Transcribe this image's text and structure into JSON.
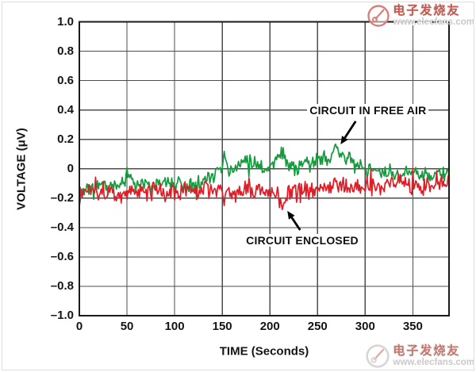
{
  "watermark": {
    "brand_cn": "电子发烧友",
    "brand_url": "www.elecfans.com",
    "logo_color": "#cf7068",
    "ring_color": "#d2d2d2"
  },
  "chart_data": {
    "type": "line",
    "title": "",
    "xlabel": "TIME (Seconds)",
    "ylabel": "VOLTAGE (μV)",
    "xlim": [
      0,
      388
    ],
    "ylim": [
      -1.0,
      1.0
    ],
    "grid": true,
    "grid_color": "#4d4d4d",
    "border_color": "#1a1a1a",
    "legend_position": "none",
    "xticks": [
      {
        "value": 0,
        "label": "0"
      },
      {
        "value": 50,
        "label": "50"
      },
      {
        "value": 100,
        "label": "100"
      },
      {
        "value": 150,
        "label": "150"
      },
      {
        "value": 200,
        "label": "200"
      },
      {
        "value": 250,
        "label": "250"
      },
      {
        "value": 300,
        "label": "300"
      },
      {
        "value": 350,
        "label": "350"
      }
    ],
    "yticks": [
      {
        "value": 1.0,
        "label": "1.0"
      },
      {
        "value": 0.8,
        "label": "0.8"
      },
      {
        "value": 0.6,
        "label": "0.6"
      },
      {
        "value": 0.4,
        "label": "0.4"
      },
      {
        "value": 0.2,
        "label": "0.2"
      },
      {
        "value": 0.0,
        "label": "0"
      },
      {
        "value": -0.2,
        "label": "–0.2"
      },
      {
        "value": -0.4,
        "label": "–0.4"
      },
      {
        "value": -0.6,
        "label": "–0.6"
      },
      {
        "value": -0.8,
        "label": "–0.8"
      },
      {
        "value": -1.0,
        "label": "–1.0"
      }
    ],
    "series": [
      {
        "name": "CIRCUIT IN FREE AIR",
        "color": "#149b3d",
        "noise_amplitude": 0.038,
        "noise_seed": 11,
        "anchors": [
          [
            0,
            -0.16
          ],
          [
            8,
            -0.12
          ],
          [
            15,
            -0.15
          ],
          [
            22,
            -0.1
          ],
          [
            30,
            -0.13
          ],
          [
            40,
            -0.12
          ],
          [
            50,
            -0.05
          ],
          [
            53,
            -0.03
          ],
          [
            58,
            -0.12
          ],
          [
            65,
            -0.1
          ],
          [
            75,
            -0.12
          ],
          [
            85,
            -0.09
          ],
          [
            95,
            -0.12
          ],
          [
            105,
            -0.09
          ],
          [
            112,
            -0.13
          ],
          [
            120,
            -0.09
          ],
          [
            128,
            -0.1
          ],
          [
            135,
            -0.06
          ],
          [
            142,
            -0.02
          ],
          [
            148,
            0.02
          ],
          [
            152,
            0.09
          ],
          [
            156,
            0.0
          ],
          [
            162,
            -0.01
          ],
          [
            168,
            0.03
          ],
          [
            173,
            0.08
          ],
          [
            178,
            0.04
          ],
          [
            184,
            0.06
          ],
          [
            190,
            0.01
          ],
          [
            196,
            0.0
          ],
          [
            203,
            0.03
          ],
          [
            209,
            0.1
          ],
          [
            213,
            0.12
          ],
          [
            218,
            0.03
          ],
          [
            224,
            0.01
          ],
          [
            230,
            -0.01
          ],
          [
            237,
            0.04
          ],
          [
            244,
            0.03
          ],
          [
            251,
            0.06
          ],
          [
            258,
            0.07
          ],
          [
            264,
            0.09
          ],
          [
            270,
            0.14
          ],
          [
            274,
            0.12
          ],
          [
            280,
            0.08
          ],
          [
            285,
            0.05
          ],
          [
            291,
            0.02
          ],
          [
            297,
            0.0
          ],
          [
            303,
            -0.02
          ],
          [
            310,
            -0.01
          ],
          [
            318,
            -0.04
          ],
          [
            326,
            -0.02
          ],
          [
            334,
            -0.05
          ],
          [
            342,
            -0.04
          ],
          [
            350,
            -0.02
          ],
          [
            357,
            -0.05
          ],
          [
            364,
            -0.03
          ],
          [
            371,
            -0.05
          ],
          [
            378,
            -0.02
          ],
          [
            388,
            -0.04
          ]
        ]
      },
      {
        "name": "CIRCUIT ENCLOSED",
        "color": "#e21c26",
        "noise_amplitude": 0.046,
        "noise_seed": 23,
        "anchors": [
          [
            0,
            -0.19
          ],
          [
            6,
            -0.15
          ],
          [
            12,
            -0.17
          ],
          [
            20,
            -0.15
          ],
          [
            28,
            -0.18
          ],
          [
            35,
            -0.15
          ],
          [
            42,
            -0.17
          ],
          [
            50,
            -0.15
          ],
          [
            58,
            -0.17
          ],
          [
            66,
            -0.14
          ],
          [
            74,
            -0.16
          ],
          [
            82,
            -0.14
          ],
          [
            90,
            -0.17
          ],
          [
            98,
            -0.14
          ],
          [
            106,
            -0.16
          ],
          [
            114,
            -0.13
          ],
          [
            122,
            -0.16
          ],
          [
            130,
            -0.14
          ],
          [
            138,
            -0.15
          ],
          [
            146,
            -0.13
          ],
          [
            154,
            -0.16
          ],
          [
            162,
            -0.18
          ],
          [
            170,
            -0.13
          ],
          [
            178,
            -0.15
          ],
          [
            186,
            -0.13
          ],
          [
            194,
            -0.15
          ],
          [
            202,
            -0.16
          ],
          [
            208,
            -0.18
          ],
          [
            213,
            -0.22
          ],
          [
            216,
            -0.27
          ],
          [
            219,
            -0.18
          ],
          [
            226,
            -0.15
          ],
          [
            234,
            -0.16
          ],
          [
            242,
            -0.14
          ],
          [
            250,
            -0.15
          ],
          [
            258,
            -0.12
          ],
          [
            266,
            -0.14
          ],
          [
            274,
            -0.12
          ],
          [
            282,
            -0.14
          ],
          [
            290,
            -0.11
          ],
          [
            298,
            -0.13
          ],
          [
            306,
            -0.12
          ],
          [
            314,
            -0.13
          ],
          [
            322,
            -0.11
          ],
          [
            330,
            -0.12
          ],
          [
            338,
            -0.1
          ],
          [
            346,
            -0.12
          ],
          [
            354,
            -0.11
          ],
          [
            362,
            -0.12
          ],
          [
            370,
            -0.1
          ],
          [
            378,
            -0.12
          ],
          [
            388,
            -0.09
          ]
        ]
      }
    ],
    "annotations": [
      {
        "label": "CIRCUIT IN FREE AIR",
        "text_at": {
          "t": 239.2,
          "v": 0.441
        },
        "arrow_from": {
          "t": 290.0,
          "v": 0.323
        },
        "arrow_to": {
          "t": 274.2,
          "v": 0.166
        }
      },
      {
        "label": "CIRCUIT ENCLOSED",
        "text_at": {
          "t": 172.5,
          "v": -0.444
        },
        "arrow_from": {
          "t": 231.7,
          "v": -0.417
        },
        "arrow_to": {
          "t": 218.3,
          "v": -0.287
        }
      }
    ]
  }
}
